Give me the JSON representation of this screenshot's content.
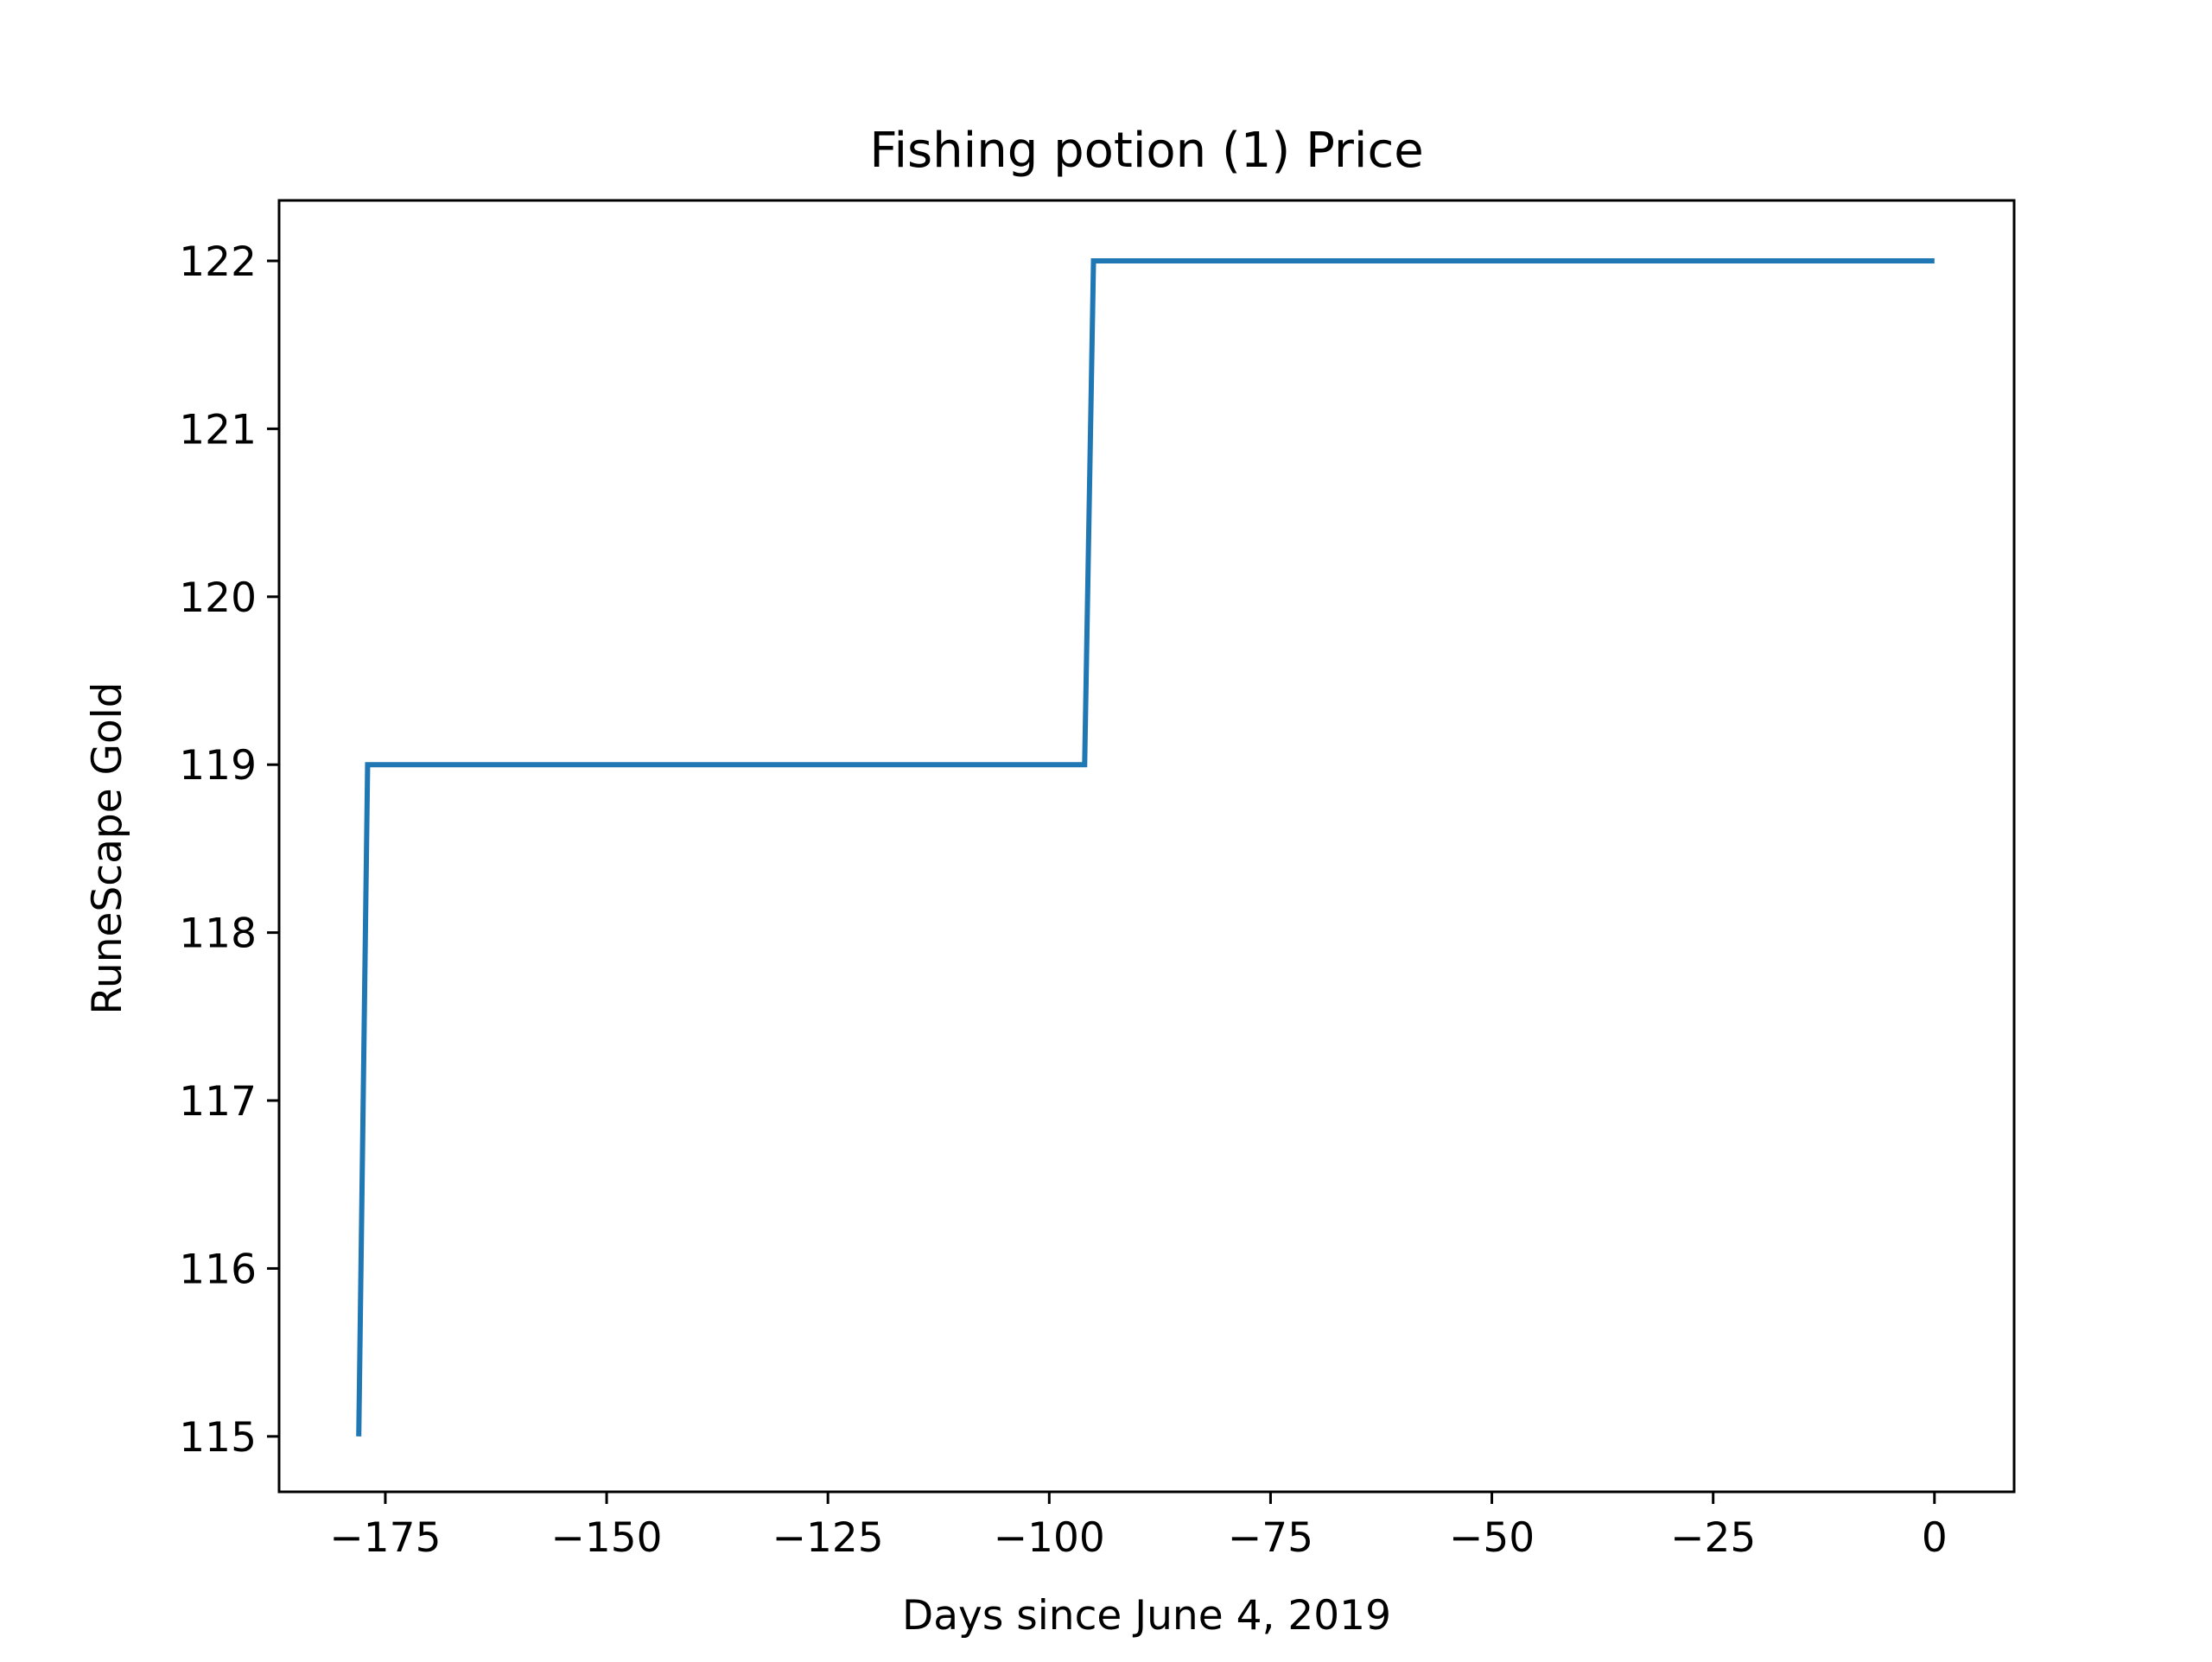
{
  "chart_data": {
    "type": "line",
    "title": "Fishing potion (1) Price",
    "xlabel": "Days since June 4, 2019",
    "ylabel": "RuneScape Gold",
    "xlim": [
      -187,
      9
    ],
    "ylim": [
      114.67,
      122.36
    ],
    "xticks": [
      -175,
      -150,
      -125,
      -100,
      -75,
      -50,
      -25,
      0
    ],
    "yticks": [
      115,
      116,
      117,
      118,
      119,
      120,
      121,
      122
    ],
    "series": [
      {
        "color": "#1f77b4",
        "x": [
          -178,
          -177,
          -96,
          -95,
          0
        ],
        "y": [
          115,
          119,
          119,
          122,
          122
        ]
      }
    ],
    "grid": false,
    "legend": false
  }
}
